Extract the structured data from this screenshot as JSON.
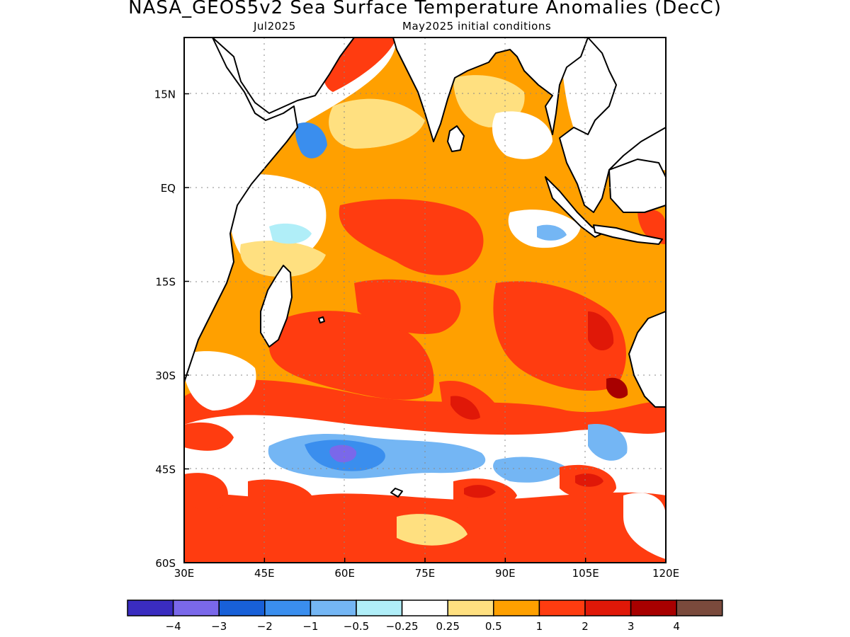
{
  "title": "NASA_GEOS5v2 Sea Surface Temperature Anomalies (DecC)",
  "subtitle_left": "Jul2025",
  "subtitle_right": "May2025 initial conditions",
  "map": {
    "lon_range": [
      30,
      120
    ],
    "lat_range": [
      -60,
      24
    ],
    "lon_ticks": [
      {
        "value": 30,
        "label": "30E"
      },
      {
        "value": 45,
        "label": "45E"
      },
      {
        "value": 60,
        "label": "60E"
      },
      {
        "value": 75,
        "label": "75E"
      },
      {
        "value": 90,
        "label": "90E"
      },
      {
        "value": 105,
        "label": "105E"
      },
      {
        "value": 120,
        "label": "120E"
      }
    ],
    "lat_ticks": [
      {
        "value": 15,
        "label": "15N"
      },
      {
        "value": 0,
        "label": "EQ"
      },
      {
        "value": -15,
        "label": "15S"
      },
      {
        "value": -30,
        "label": "30S"
      },
      {
        "value": -45,
        "label": "45S"
      },
      {
        "value": -60,
        "label": "60S"
      }
    ],
    "grid": true,
    "land_color": "#ffffff",
    "coastline_color": "#000000"
  },
  "colorbar": {
    "colors": [
      "#3a2cc0",
      "#7a68ea",
      "#1860d8",
      "#3a8eee",
      "#74b6f4",
      "#b0eef8",
      "#ffffff",
      "#ffe080",
      "#ffa000",
      "#ff3c10",
      "#e01808",
      "#a80000",
      "#7a4a3c"
    ],
    "labels": [
      "−4",
      "−3",
      "−2",
      "−1",
      "−0.5",
      "−0.25",
      "0.25",
      "0.5",
      "1",
      "2",
      "3",
      "4"
    ]
  }
}
